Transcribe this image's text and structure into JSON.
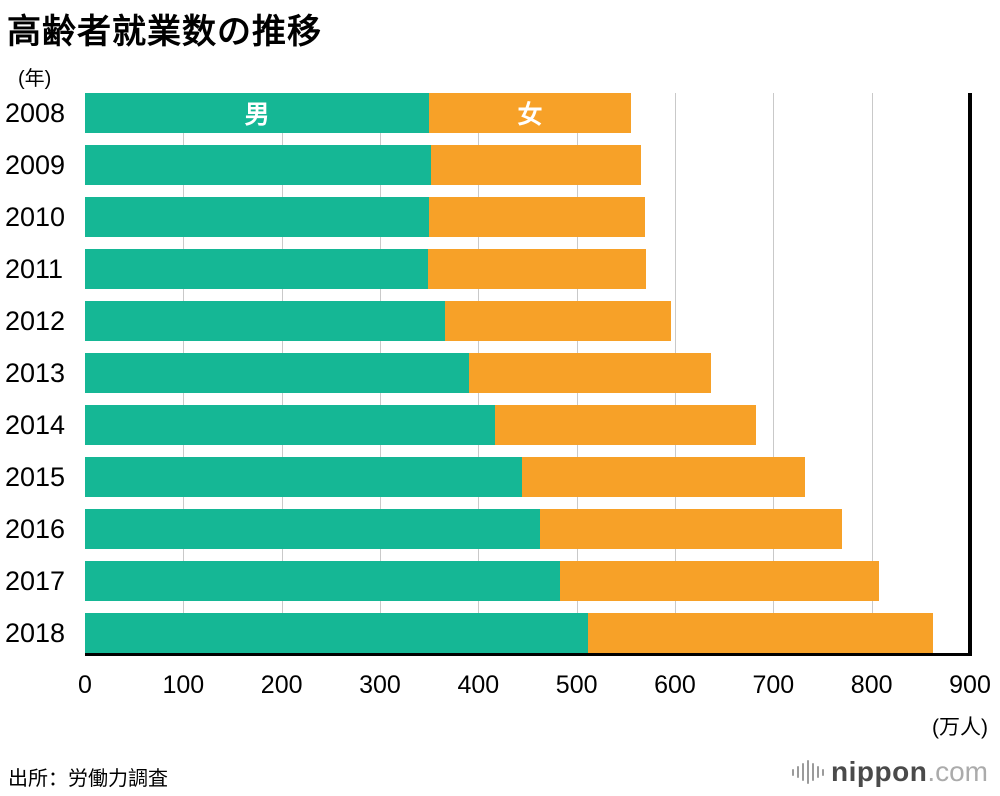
{
  "title": "高齢者就業数の推移",
  "y_axis_unit": "(年)",
  "x_axis_unit": "(万人)",
  "source": "出所：労働力調査",
  "branding": {
    "name": "nippon",
    "tld": ".com",
    "icon": "audio-bars-icon"
  },
  "chart_data": {
    "type": "bar",
    "orientation": "horizontal",
    "stacked": true,
    "title": "高齢者就業数の推移",
    "xlabel": "(万人)",
    "ylabel": "(年)",
    "categories": [
      "2008",
      "2009",
      "2010",
      "2011",
      "2012",
      "2013",
      "2014",
      "2015",
      "2016",
      "2017",
      "2018"
    ],
    "series": [
      {
        "name": "男",
        "color": "#15b795",
        "values": [
          350,
          352,
          350,
          349,
          366,
          390,
          417,
          444,
          463,
          483,
          512
        ]
      },
      {
        "name": "女",
        "color": "#f7a128",
        "values": [
          205,
          213,
          219,
          222,
          230,
          247,
          265,
          288,
          307,
          324,
          350
        ]
      }
    ],
    "totals": [
      555,
      565,
      569,
      571,
      596,
      637,
      682,
      732,
      770,
      807,
      862
    ],
    "x_ticks": [
      0,
      100,
      200,
      300,
      400,
      500,
      600,
      700,
      800,
      900
    ],
    "xlim": [
      0,
      900
    ],
    "grid": true,
    "series_labels_shown_on_first_bar": true,
    "series_label_color": "#ffffff"
  }
}
